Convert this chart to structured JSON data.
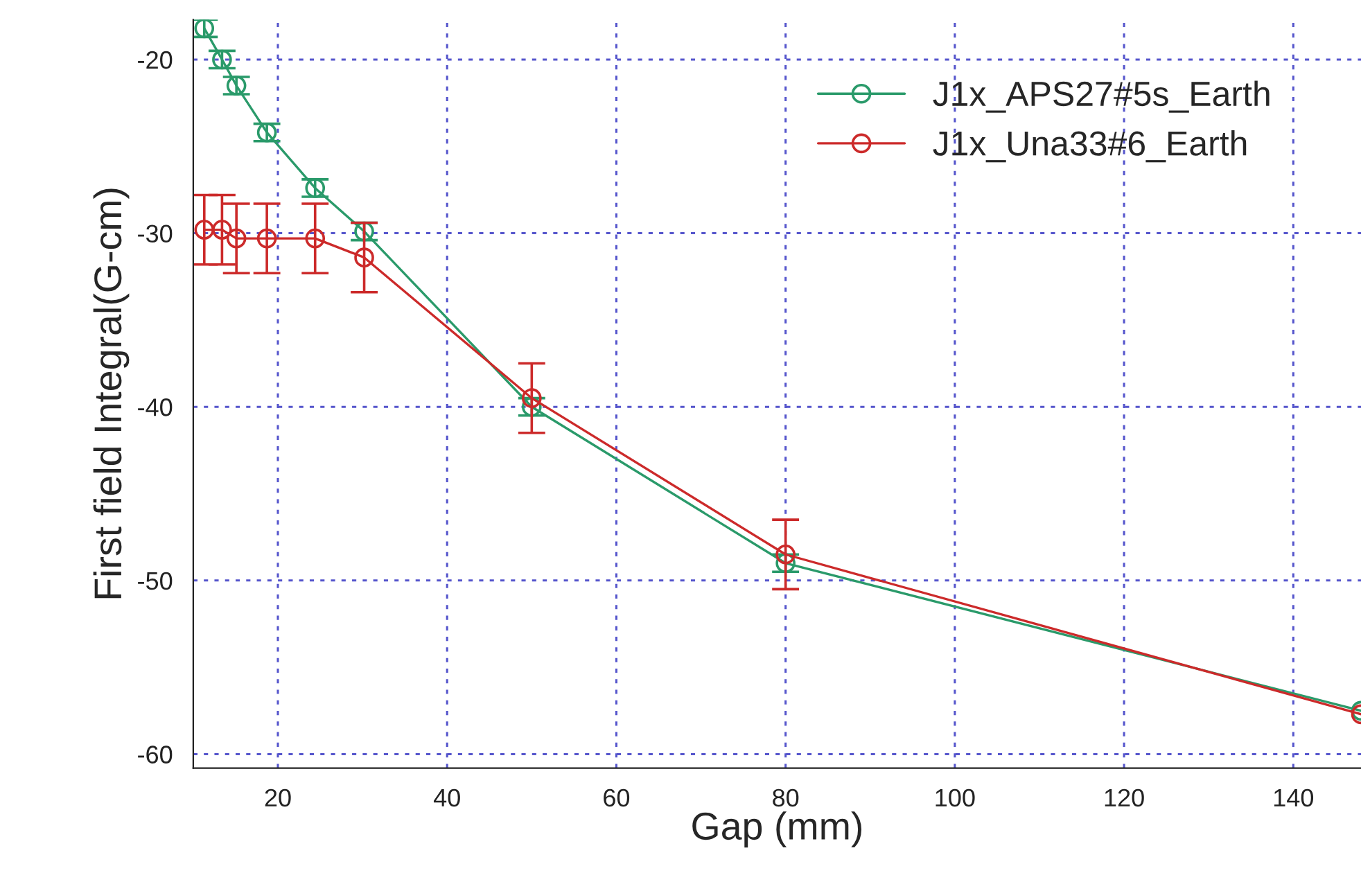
{
  "chart_data": {
    "type": "line",
    "xlabel": "Gap (mm)",
    "ylabel": "First field Integral(G-cm)",
    "xlim": [
      10,
      148
    ],
    "xticks": [
      20,
      40,
      60,
      80,
      100,
      120,
      140
    ],
    "ylim": [
      -60.8,
      -17.7
    ],
    "yticks": [
      -20,
      -30,
      -40,
      -50,
      -60
    ],
    "grid": true,
    "legend": "top right",
    "marker": "circle",
    "line_style": "solid",
    "series": [
      {
        "name": "J1x_APS27#5s_Earth",
        "color": "#2a9a6a",
        "x": [
          11.3,
          13.4,
          15.1,
          18.7,
          24.4,
          30.2,
          50,
          80,
          148
        ],
        "values": [
          -18.2,
          -20.0,
          -21.5,
          -24.2,
          -27.4,
          -29.9,
          -40.0,
          -49.0,
          -57.5
        ],
        "errors": [
          0.5,
          0.5,
          0.5,
          0.5,
          0.5,
          0.5,
          0.5,
          0.5,
          null
        ]
      },
      {
        "name": "J1x_Una33#6_Earth",
        "color": "#cc2a2a",
        "x": [
          11.3,
          13.4,
          15.1,
          18.7,
          24.4,
          30.2,
          50,
          80,
          148
        ],
        "values": [
          -29.8,
          -29.8,
          -30.3,
          -30.3,
          -30.3,
          -31.4,
          -39.5,
          -48.5,
          -57.7
        ],
        "errors": [
          2,
          2,
          2,
          2,
          2,
          2,
          2,
          2,
          null
        ]
      }
    ]
  }
}
